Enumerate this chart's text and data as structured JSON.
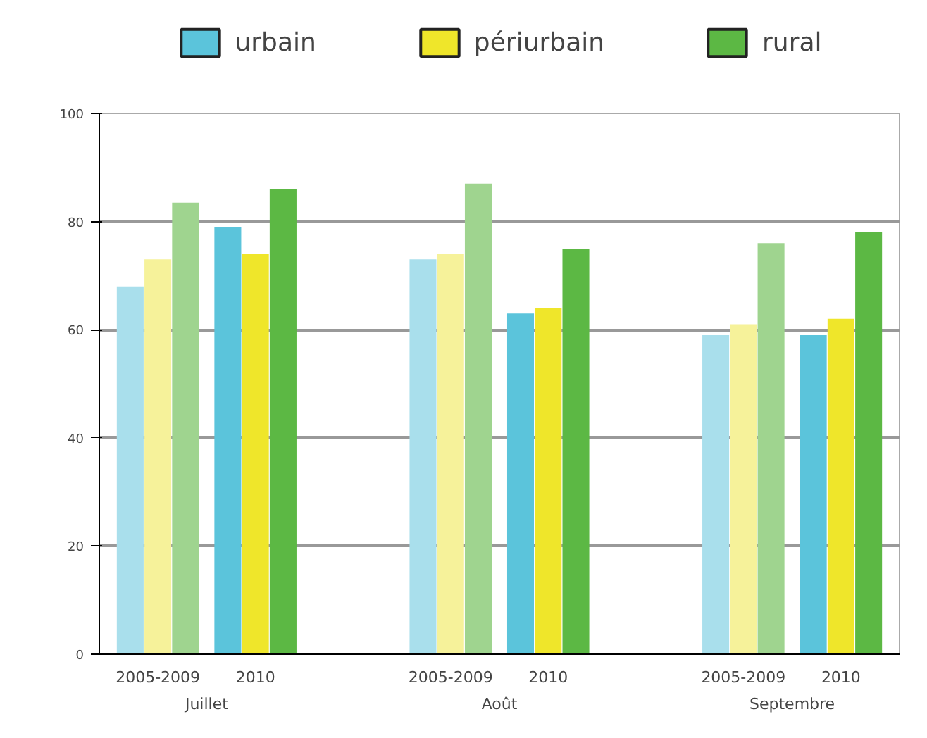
{
  "chart_data": {
    "type": "bar",
    "categories": [
      "2005-2009",
      "2010",
      null,
      "2005-2009",
      "2010",
      null,
      "2005-2009",
      "2010"
    ],
    "series": [
      {
        "name": "urbain",
        "color": "#5bc4db",
        "colors": [
          "#a9dfec",
          "#5bc4db",
          null,
          "#a9dfec",
          "#5bc4db",
          null,
          "#a9dfec",
          "#5bc4db"
        ],
        "values": [
          68,
          79,
          null,
          73,
          63,
          null,
          59,
          59
        ]
      },
      {
        "name": "périurbain",
        "color": "#efe62a",
        "colors": [
          "#f6f29a",
          "#efe62a",
          null,
          "#f6f29a",
          "#efe62a",
          null,
          "#f6f29a",
          "#efe62a"
        ],
        "values": [
          73,
          74,
          null,
          74,
          64,
          null,
          61,
          62
        ]
      },
      {
        "name": "rural",
        "color": "#5cb844",
        "colors": [
          "#9fd48f",
          "#5cb844",
          null,
          "#9fd48f",
          "#5cb844",
          null,
          "#9fd48f",
          "#5cb844"
        ],
        "values": [
          83.5,
          86,
          null,
          87,
          75,
          null,
          76,
          78
        ]
      }
    ],
    "annotations": [
      "Juillet",
      "Août",
      "Septembre"
    ],
    "ylim": [
      0,
      100
    ],
    "yticks": [
      0,
      20,
      40,
      60,
      80,
      100
    ],
    "grid": "y",
    "legend": "top"
  }
}
